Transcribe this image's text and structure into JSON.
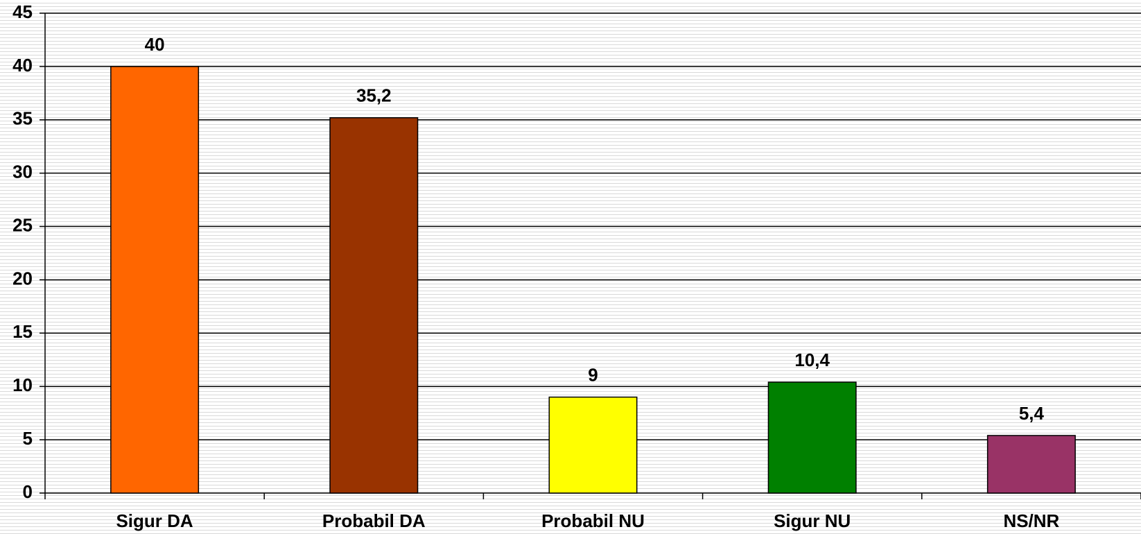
{
  "chart_data": {
    "type": "bar",
    "categories": [
      "Sigur DA",
      "Probabil DA",
      "Probabil NU",
      "Sigur NU",
      "NS/NR"
    ],
    "values": [
      40,
      35.2,
      9,
      10.4,
      5.4
    ],
    "value_labels": [
      "40",
      "35,2",
      "9",
      "10,4",
      "5,4"
    ],
    "colors": [
      "#ff6600",
      "#993300",
      "#ffff00",
      "#008000",
      "#993366"
    ],
    "ylim": [
      0,
      45
    ],
    "yticks": [
      0,
      5,
      10,
      15,
      20,
      25,
      30,
      35,
      40,
      45
    ],
    "grid": true
  }
}
